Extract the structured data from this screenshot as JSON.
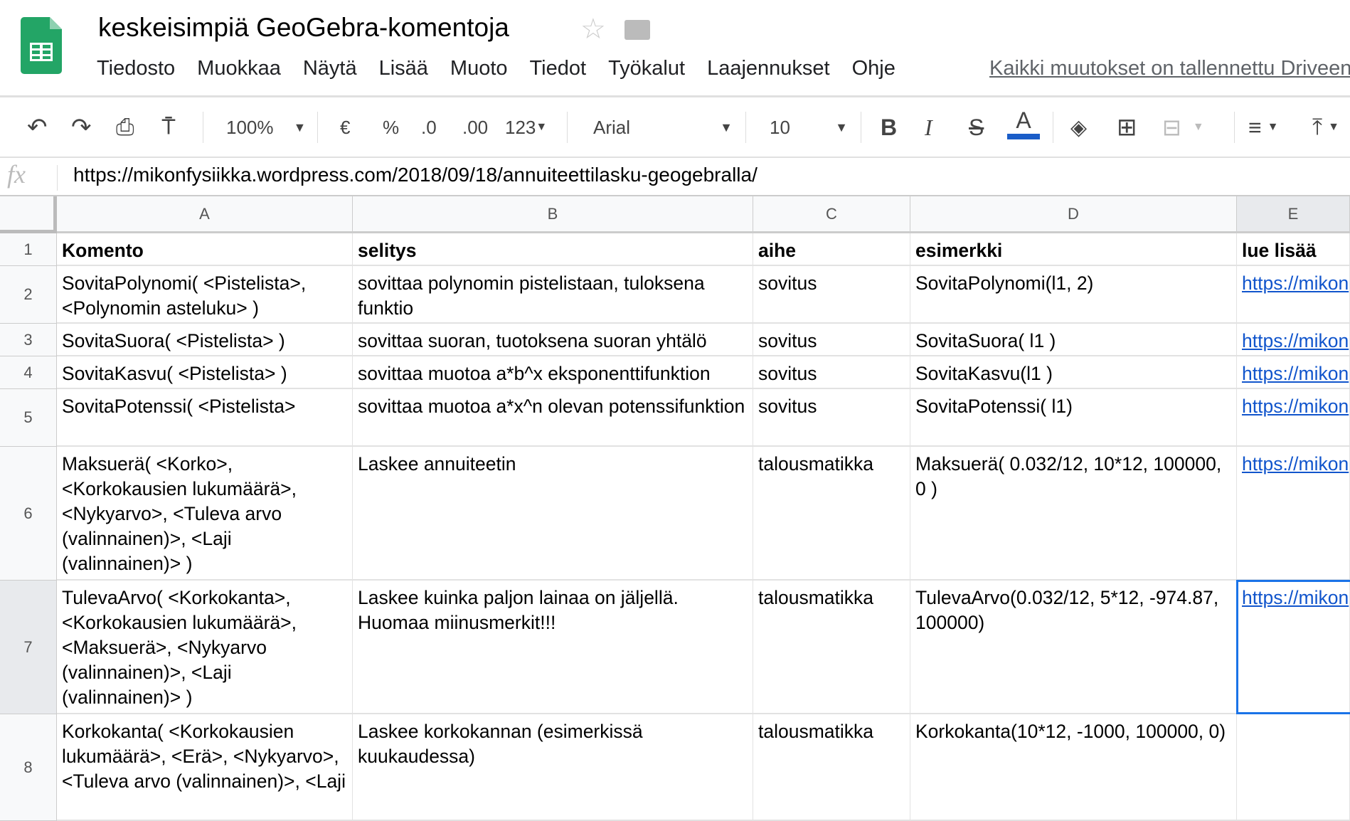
{
  "app": {
    "title": "keskeisimpiä GeoGebra-komentoja",
    "saved_status": "Kaikki muutokset on tallennettu Driveen"
  },
  "menu": [
    "Tiedosto",
    "Muokkaa",
    "Näytä",
    "Lisää",
    "Muoto",
    "Tiedot",
    "Työkalut",
    "Laajennukset",
    "Ohje"
  ],
  "toolbar": {
    "zoom": "100%",
    "currency": "€",
    "percent": "%",
    "dec_less": ".0",
    "dec_more": ".00",
    "format": "123",
    "font": "Arial",
    "font_size": "10",
    "bold": "B",
    "italic": "I",
    "strike": "S",
    "text_color": "A",
    "text_color_hex": "#1a5dc8"
  },
  "formula_bar": {
    "fx": "fx",
    "value": "https://mikonfysiikka.wordpress.com/2018/09/18/annuiteettilasku-geogebralla/"
  },
  "columns": [
    "A",
    "B",
    "C",
    "D",
    "E"
  ],
  "rows": [
    {
      "n": "1",
      "cells": [
        "Komento",
        "selitys",
        "aihe",
        "esimerkki",
        "lue lisää"
      ]
    },
    {
      "n": "2",
      "cells": [
        "SovitaPolynomi( <Pistelista>, <Polynomin asteluku> )",
        "sovittaa polynomin pistelistaan, tuloksena funktio",
        "sovitus",
        "SovitaPolynomi(l1, 2)",
        "https://mikon"
      ]
    },
    {
      "n": "3",
      "cells": [
        "SovitaSuora( <Pistelista> )",
        "sovittaa suoran, tuotoksena suoran yhtälö",
        "sovitus",
        "SovitaSuora( l1 )",
        "https://mikon"
      ]
    },
    {
      "n": "4",
      "cells": [
        "SovitaKasvu( <Pistelista> )",
        "sovittaa muotoa a*b^x eksponenttifunktion",
        "sovitus",
        "SovitaKasvu(l1 )",
        "https://mikon"
      ]
    },
    {
      "n": "5",
      "cells": [
        "SovitaPotenssi( <Pistelista>",
        "sovittaa muotoa a*x^n olevan potenssifunktion",
        "sovitus",
        "SovitaPotenssi( l1)",
        "https://mikon"
      ]
    },
    {
      "n": "6",
      "cells": [
        "Maksuerä( <Korko>, <Korkokausien lukumäärä>, <Nykyarvo>, <Tuleva arvo (valinnainen)>, <Laji (valinnainen)> )",
        "Laskee annuiteetin",
        "talousmatikka",
        "Maksuerä( 0.032/12, 10*12, 100000, 0 )",
        "https://mikon"
      ]
    },
    {
      "n": "7",
      "cells": [
        "TulevaArvo( <Korkokanta>, <Korkokausien lukumäärä>, <Maksuerä>, <Nykyarvo (valinnainen)>, <Laji (valinnainen)> )",
        "Laskee kuinka paljon lainaa on jäljellä. Huomaa miinusmerkit!!!",
        "talousmatikka",
        "TulevaArvo(0.032/12, 5*12, -974.87, 100000)",
        "https://mikon"
      ]
    },
    {
      "n": "8",
      "cells": [
        "Korkokanta( <Korkokausien lukumäärä>, <Erä>, <Nykyarvo>, <Tuleva arvo (valinnainen)>, <Laji",
        "Laskee korkokannan (esimerkissä kuukaudessa)",
        "talousmatikka",
        "Korkokanta(10*12, -1000, 100000, 0)",
        ""
      ]
    }
  ]
}
